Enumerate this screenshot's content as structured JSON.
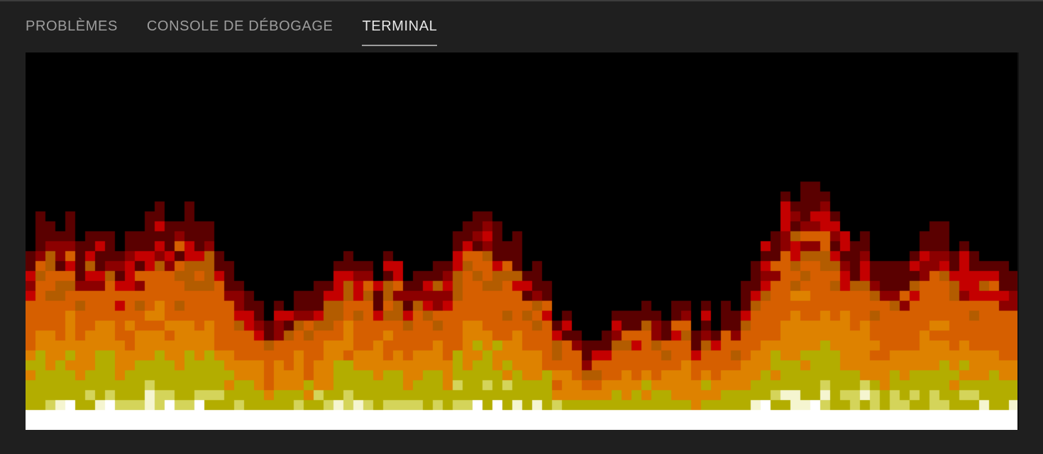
{
  "panel": {
    "tabs": [
      {
        "label": "PROBLÈMES",
        "active": false
      },
      {
        "label": "CONSOLE DE DÉBOGAGE",
        "active": false
      },
      {
        "label": "TERMINAL",
        "active": true
      }
    ]
  },
  "terminal": {
    "content": "ascii-fire-animation",
    "palette": [
      "#000000",
      "#5a0000",
      "#8c0000",
      "#c40000",
      "#b35c00",
      "#d65f00",
      "#de8200",
      "#b3ad00",
      "#d4d45a",
      "#f5f5d0",
      "#ffffff"
    ]
  },
  "colors": {
    "panel_bg": "#1f1f1f",
    "tab_active": "#e7e7e7",
    "tab_inactive": "#9d9d9d"
  }
}
